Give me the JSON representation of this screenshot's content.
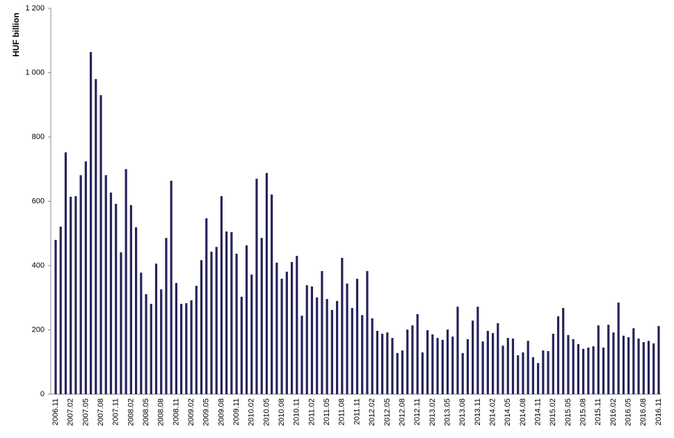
{
  "chart_data": {
    "type": "bar",
    "y_label": "HUF billion",
    "color": "#25235a",
    "ylim": [
      0,
      1200
    ],
    "yticks": [
      0,
      200,
      400,
      600,
      800,
      {
        "value": 1000,
        "label": "1 000"
      },
      {
        "value": 1200,
        "label": "1 200"
      }
    ],
    "categories": [
      "2006.11",
      null,
      null,
      "2007.02",
      null,
      null,
      "2007.05",
      null,
      null,
      "2007.08",
      null,
      null,
      "2007.11",
      null,
      null,
      "2008.02",
      null,
      null,
      "2008.05",
      null,
      null,
      "2008.08",
      null,
      null,
      "2008.11",
      null,
      null,
      "2009.02",
      null,
      null,
      "2009.05",
      null,
      null,
      "2009.08",
      null,
      null,
      "2009.11",
      null,
      null,
      "2010.02",
      null,
      null,
      "2010.05",
      null,
      null,
      "2010.08",
      null,
      null,
      "2010.11",
      null,
      null,
      "2011.02",
      null,
      null,
      "2011.05",
      null,
      null,
      "2011.08",
      null,
      null,
      "2011.11",
      null,
      null,
      "2012.02",
      null,
      null,
      "2012.05",
      null,
      null,
      "2012.08",
      null,
      null,
      "2012.11",
      null,
      null,
      "2013.02",
      null,
      null,
      "2013.05",
      null,
      null,
      "2013.08",
      null,
      null,
      "2013.11",
      null,
      null,
      "2014.02",
      null,
      null,
      "2014.05",
      null,
      null,
      "2014.08",
      null,
      null,
      "2014.11",
      null,
      null,
      "2015.02",
      null,
      null,
      "2015.05",
      null,
      null,
      "2015.08",
      null,
      null,
      "2015.11",
      null,
      null,
      "2016.02",
      null,
      null,
      "2016.05",
      null,
      null,
      "2016.08",
      null,
      null,
      "2016.11"
    ],
    "values": [
      480,
      521,
      752,
      614,
      616,
      681,
      724,
      1064,
      980,
      930,
      681,
      627,
      592,
      441,
      700,
      588,
      519,
      378,
      311,
      281,
      406,
      326,
      486,
      664,
      346,
      281,
      283,
      292,
      337,
      417,
      547,
      443,
      458,
      616,
      506,
      504,
      437,
      303,
      463,
      372,
      670,
      486,
      688,
      621,
      409,
      359,
      381,
      411,
      430,
      244,
      339,
      335,
      301,
      383,
      296,
      262,
      290,
      424,
      344,
      268,
      359,
      246,
      383,
      236,
      197,
      188,
      192,
      175,
      128,
      136,
      201,
      214,
      249,
      130,
      199,
      186,
      175,
      169,
      201,
      179,
      272,
      128,
      171,
      229,
      272,
      164,
      197,
      190,
      221,
      151,
      175,
      173,
      121,
      130,
      166,
      115,
      97,
      136,
      134,
      188,
      242,
      268,
      184,
      171,
      156,
      141,
      145,
      149,
      214,
      145,
      216,
      192,
      285,
      182,
      177,
      205,
      173,
      162,
      166,
      158,
      212
    ]
  }
}
